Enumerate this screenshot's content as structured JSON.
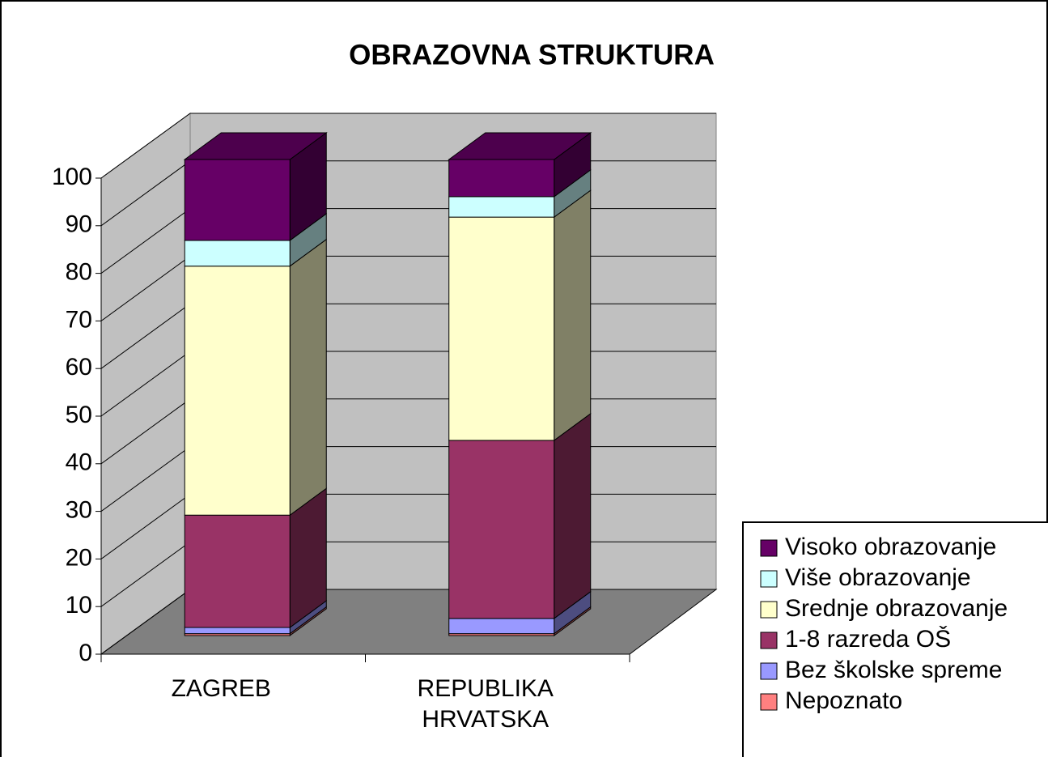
{
  "chart_data": {
    "type": "bar",
    "stacked": true,
    "title": "OBRAZOVNA STRUKTURA",
    "categories": [
      "ZAGREB",
      "REPUBLIKA HRVATSKA"
    ],
    "series": [
      {
        "name": "Nepoznato",
        "color": "#ff8080",
        "values": [
          0.4,
          0.4
        ]
      },
      {
        "name": "Bez školske spreme",
        "color": "#9999ff",
        "values": [
          1.3,
          3.2
        ]
      },
      {
        "name": "1-8 razreda OŠ",
        "color": "#993366",
        "values": [
          23.6,
          37.4
        ]
      },
      {
        "name": "Srednje obrazovanje",
        "color": "#ffffcc",
        "values": [
          52.3,
          46.9
        ]
      },
      {
        "name": "Više obrazovanje",
        "color": "#ccffff",
        "values": [
          5.4,
          4.3
        ]
      },
      {
        "name": "Visoko obrazovanje",
        "color": "#660066",
        "values": [
          17.0,
          7.8
        ]
      }
    ],
    "ylim": [
      0,
      100
    ],
    "yticks": [
      0,
      10,
      20,
      30,
      40,
      50,
      60,
      70,
      80,
      90,
      100
    ],
    "grid": true,
    "legend": "right"
  }
}
